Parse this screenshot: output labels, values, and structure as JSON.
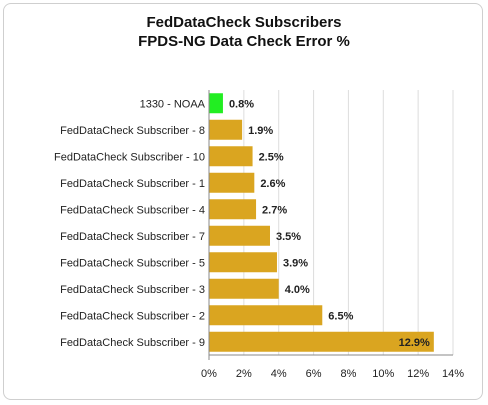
{
  "chart_data": {
    "type": "bar",
    "orientation": "horizontal",
    "title": "FedDataCheck Subscribers",
    "subtitle": "FPDS-NG Data Check Error %",
    "xlabel": "",
    "ylabel": "",
    "xlim": [
      0,
      14
    ],
    "x_ticks": [
      "0%",
      "2%",
      "4%",
      "6%",
      "8%",
      "10%",
      "12%",
      "14%"
    ],
    "grid": "vertical",
    "categories": [
      "1330 - NOAA",
      "FedDataCheck Subscriber - 8",
      "FedDataCheck Subscriber - 10",
      "FedDataCheck Subscriber - 1",
      "FedDataCheck Subscriber - 4",
      "FedDataCheck Subscriber - 7",
      "FedDataCheck Subscriber - 5",
      "FedDataCheck Subscriber - 3",
      "FedDataCheck Subscriber - 2",
      "FedDataCheck Subscriber - 9"
    ],
    "values": [
      0.8,
      1.9,
      2.5,
      2.6,
      2.7,
      3.5,
      3.9,
      4.0,
      6.5,
      12.9
    ],
    "data_labels": [
      "0.8%",
      "1.9%",
      "2.5%",
      "2.6%",
      "2.7%",
      "3.5%",
      "3.9%",
      "4.0%",
      "6.5%",
      "12.9%"
    ],
    "bar_colors": [
      "#22ee22",
      "#daa520",
      "#daa520",
      "#daa520",
      "#daa520",
      "#daa520",
      "#daa520",
      "#daa520",
      "#daa520",
      "#daa520"
    ],
    "colors": {
      "highlight": "#22ee22",
      "default": "#daa520",
      "grid": "#dddddd",
      "axis": "#888888",
      "text": "#222222"
    }
  }
}
